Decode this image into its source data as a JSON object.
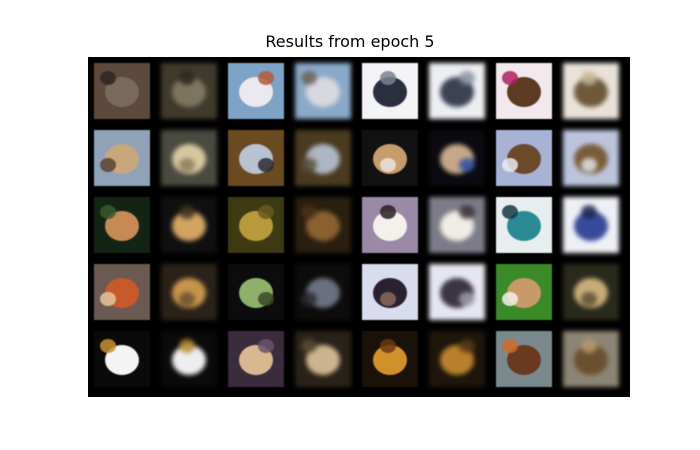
{
  "figure": {
    "title": "Results from epoch 5"
  },
  "grid": {
    "rows": 5,
    "columns": 8,
    "column_roles": [
      "original",
      "reconstruction",
      "original",
      "reconstruction",
      "original",
      "reconstruction",
      "original",
      "reconstruction"
    ],
    "tiles": [
      [
        {
          "bg": "#5d4a3c",
          "fg": "#7a6a5c",
          "accent": "#2e2620"
        },
        {
          "bg": "#3f3a2c",
          "fg": "#7d7560",
          "accent": "#2a261c"
        },
        {
          "bg": "#7ea3c6",
          "fg": "#e9e9ef",
          "accent": "#b25b3a"
        },
        {
          "bg": "#8aa9c8",
          "fg": "#d8d8e0",
          "accent": "#6b6356"
        },
        {
          "bg": "#f4f4f6",
          "fg": "#2a2f3d",
          "accent": "#7a8194"
        },
        {
          "bg": "#eceef2",
          "fg": "#3c4254",
          "accent": "#8c93a4"
        },
        {
          "bg": "#f2e8ee",
          "fg": "#5c3b22",
          "accent": "#b02060"
        },
        {
          "bg": "#e8e2d8",
          "fg": "#6e5a3a",
          "accent": "#c8b89a"
        }
      ],
      [
        {
          "bg": "#8fa2b8",
          "fg": "#c8a77c",
          "accent": "#5a4430"
        },
        {
          "bg": "#4a4a40",
          "fg": "#d8c6a0",
          "accent": "#8e7c5c"
        },
        {
          "bg": "#6a4a20",
          "fg": "#b9c2d0",
          "accent": "#2c2c36"
        },
        {
          "bg": "#4a3a20",
          "fg": "#aeb6c4",
          "accent": "#5a5040"
        },
        {
          "bg": "#121212",
          "fg": "#c79b6c",
          "accent": "#e9e4dc"
        },
        {
          "bg": "#0a0a10",
          "fg": "#c6a888",
          "accent": "#2a4fa0"
        },
        {
          "bg": "#a8b2d4",
          "fg": "#6b4a2c",
          "accent": "#e9e9f0"
        },
        {
          "bg": "#bcc4dc",
          "fg": "#7a5c3a",
          "accent": "#e4e4ec"
        }
      ],
      [
        {
          "bg": "#142414",
          "fg": "#c88a54",
          "accent": "#3a5a2a"
        },
        {
          "bg": "#101010",
          "fg": "#d2a460",
          "accent": "#403020"
        },
        {
          "bg": "#3e3a14",
          "fg": "#b89a3c",
          "accent": "#6a5a20"
        },
        {
          "bg": "#2a1e10",
          "fg": "#8a6030",
          "accent": "#4a3418"
        },
        {
          "bg": "#9a8aa8",
          "fg": "#f4f0ec",
          "accent": "#2a2024"
        },
        {
          "bg": "#7c7c88",
          "fg": "#f0ece6",
          "accent": "#3a3438"
        },
        {
          "bg": "#e8eef0",
          "fg": "#2a8a94",
          "accent": "#143a46"
        },
        {
          "bg": "#eef0f6",
          "fg": "#3a4a9a",
          "accent": "#1c2450"
        }
      ],
      [
        {
          "bg": "#6a5a52",
          "fg": "#c65a2a",
          "accent": "#e8c49c"
        },
        {
          "bg": "#2a2218",
          "fg": "#c8944c",
          "accent": "#6a5030"
        },
        {
          "bg": "#0c0c0c",
          "fg": "#8eb06a",
          "accent": "#3a4a28"
        },
        {
          "bg": "#0c0c0c",
          "fg": "#6a7080",
          "accent": "#2a2c30"
        },
        {
          "bg": "#d8dcec",
          "fg": "#2a2030",
          "accent": "#8a6a5a"
        },
        {
          "bg": "#e4e6f0",
          "fg": "#3c3440",
          "accent": "#a0a0b0"
        },
        {
          "bg": "#3a8a2a",
          "fg": "#c89a6a",
          "accent": "#f4f0e8"
        },
        {
          "bg": "#2a2a1c",
          "fg": "#c8ac78",
          "accent": "#5a5034"
        }
      ],
      [
        {
          "bg": "#0a0a0a",
          "fg": "#f4f4f4",
          "accent": "#c89230"
        },
        {
          "bg": "#0a0a0a",
          "fg": "#eeeeee",
          "accent": "#b88a34"
        },
        {
          "bg": "#3a2c3c",
          "fg": "#d8b890",
          "accent": "#6a5468"
        },
        {
          "bg": "#2a2218",
          "fg": "#cdb48e",
          "accent": "#5a4a36"
        },
        {
          "bg": "#1a1208",
          "fg": "#d0902c",
          "accent": "#6a3a10"
        },
        {
          "bg": "#1e160a",
          "fg": "#b8802c",
          "accent": "#5a3a14"
        },
        {
          "bg": "#7a8a8e",
          "fg": "#6a3a20",
          "accent": "#d06a2a"
        },
        {
          "bg": "#8c8474",
          "fg": "#6a5030",
          "accent": "#b89a6a"
        }
      ]
    ]
  }
}
